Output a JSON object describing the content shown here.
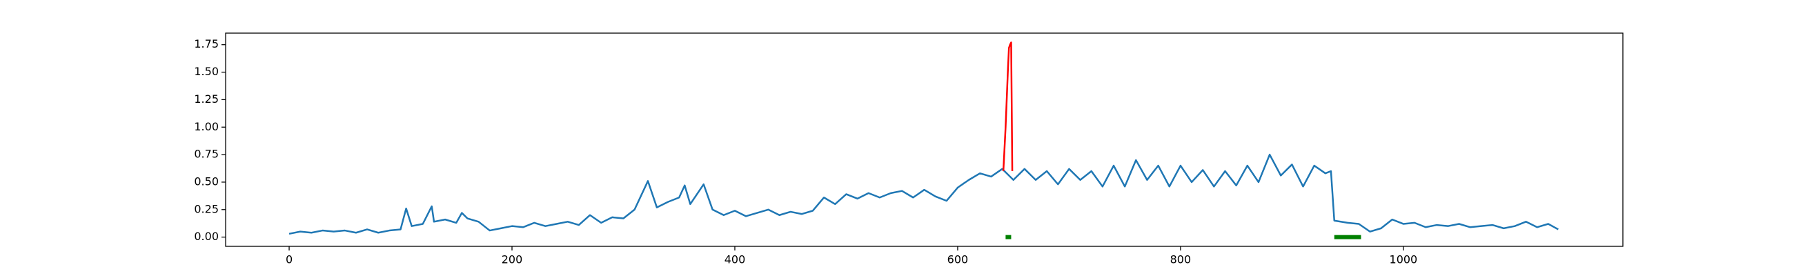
{
  "chart_data": {
    "type": "line",
    "xlim": [
      -57,
      1197
    ],
    "ylim": [
      -0.084,
      1.855
    ],
    "xticks": [
      0,
      200,
      400,
      600,
      800,
      1000
    ],
    "yticks": [
      {
        "value": 0,
        "label": "0.00"
      },
      {
        "value": 0.25,
        "label": "0.25"
      },
      {
        "value": 0.5,
        "label": "0.50"
      },
      {
        "value": 0.75,
        "label": "0.75"
      },
      {
        "value": 1,
        "label": "1.00"
      },
      {
        "value": 1.25,
        "label": "1.25"
      },
      {
        "value": 1.5,
        "label": "1.50"
      },
      {
        "value": 1.75,
        "label": "1.75"
      }
    ],
    "series": [
      {
        "color": "#1f77b4",
        "x": [
          0,
          10,
          20,
          30,
          40,
          50,
          60,
          70,
          80,
          90,
          100,
          105,
          110,
          120,
          128,
          130,
          140,
          150,
          155,
          160,
          170,
          180,
          190,
          200,
          210,
          220,
          230,
          240,
          250,
          260,
          270,
          280,
          290,
          300,
          310,
          322,
          330,
          340,
          350,
          355,
          360,
          372,
          380,
          390,
          400,
          410,
          420,
          430,
          440,
          450,
          460,
          470,
          480,
          490,
          500,
          510,
          520,
          530,
          540,
          550,
          560,
          570,
          580,
          590,
          600,
          610,
          620,
          630,
          640,
          650,
          660,
          670,
          680,
          690,
          700,
          710,
          720,
          730,
          740,
          750,
          760,
          770,
          780,
          790,
          800,
          810,
          820,
          830,
          840,
          850,
          860,
          870,
          880,
          890,
          900,
          910,
          920,
          930,
          935,
          938,
          950,
          960,
          970,
          980,
          990,
          1000,
          1010,
          1020,
          1030,
          1040,
          1050,
          1060,
          1070,
          1080,
          1090,
          1100,
          1110,
          1120,
          1130,
          1139
        ],
        "values": [
          0.03,
          0.05,
          0.04,
          0.06,
          0.05,
          0.06,
          0.04,
          0.07,
          0.04,
          0.06,
          0.07,
          0.26,
          0.1,
          0.12,
          0.28,
          0.14,
          0.16,
          0.13,
          0.22,
          0.17,
          0.14,
          0.06,
          0.08,
          0.1,
          0.09,
          0.13,
          0.1,
          0.12,
          0.14,
          0.11,
          0.2,
          0.13,
          0.18,
          0.17,
          0.25,
          0.51,
          0.27,
          0.32,
          0.36,
          0.47,
          0.3,
          0.48,
          0.25,
          0.2,
          0.24,
          0.19,
          0.22,
          0.25,
          0.2,
          0.23,
          0.21,
          0.24,
          0.36,
          0.3,
          0.39,
          0.35,
          0.4,
          0.36,
          0.4,
          0.42,
          0.36,
          0.43,
          0.37,
          0.33,
          0.45,
          0.52,
          0.58,
          0.55,
          0.62,
          0.52,
          0.62,
          0.52,
          0.6,
          0.48,
          0.62,
          0.52,
          0.6,
          0.46,
          0.65,
          0.46,
          0.7,
          0.52,
          0.65,
          0.46,
          0.65,
          0.5,
          0.61,
          0.46,
          0.6,
          0.47,
          0.65,
          0.5,
          0.75,
          0.56,
          0.66,
          0.46,
          0.65,
          0.58,
          0.6,
          0.15,
          0.13,
          0.12,
          0.05,
          0.08,
          0.16,
          0.12,
          0.13,
          0.09,
          0.11,
          0.1,
          0.12,
          0.09,
          0.1,
          0.11,
          0.08,
          0.1,
          0.14,
          0.09,
          0.12,
          0.07
        ]
      },
      {
        "color": "#ff0000",
        "x": [
          641,
          643,
          645,
          646,
          647,
          648,
          649
        ],
        "values": [
          0.6,
          1.0,
          1.5,
          1.72,
          1.75,
          1.77,
          0.6
        ]
      },
      {
        "color": "#008000",
        "x": [
          643,
          648,
          800,
          938,
          962
        ],
        "values": [
          0,
          0,
          null,
          0,
          0
        ]
      }
    ]
  }
}
